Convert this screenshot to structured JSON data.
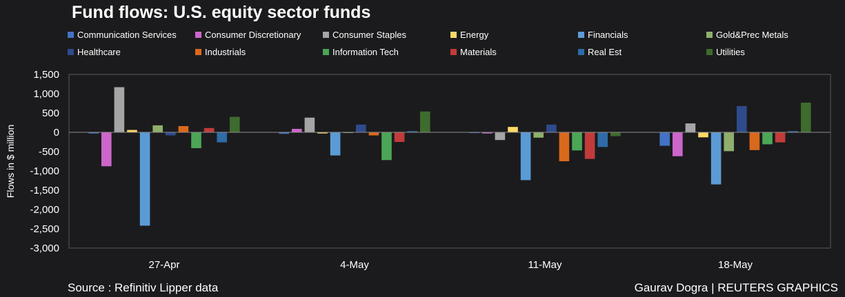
{
  "chart_data": {
    "type": "bar",
    "title": "Fund flows: U.S. equity sector funds",
    "xlabel": "",
    "ylabel": "Flows in $ million",
    "ylim": [
      -3000,
      1500
    ],
    "yticks": [
      1500,
      1000,
      500,
      0,
      -500,
      -1000,
      -1500,
      -2000,
      -2500,
      -3000
    ],
    "ytick_labels": [
      "1,500",
      "1,000",
      "500",
      "0",
      "-500",
      "-1,000",
      "-1,500",
      "-2,000",
      "-2,500",
      "-3,000"
    ],
    "categories": [
      "27-Apr",
      "4-May",
      "11-May",
      "18-May"
    ],
    "legend_position": "top",
    "series": [
      {
        "name": "Communication Services",
        "color": "#4472c4",
        "values": [
          -30,
          -40,
          -20,
          -350
        ]
      },
      {
        "name": "Consumer Discretionary",
        "color": "#cc66cc",
        "values": [
          -880,
          90,
          -30,
          -620
        ]
      },
      {
        "name": "Consumer Staples",
        "color": "#a5a5a5",
        "values": [
          1170,
          380,
          -200,
          230
        ]
      },
      {
        "name": "Energy",
        "color": "#ffd966",
        "values": [
          60,
          -30,
          140,
          -130
        ]
      },
      {
        "name": "Financials",
        "color": "#5b9bd5",
        "values": [
          -2420,
          -600,
          -1240,
          -1350
        ]
      },
      {
        "name": "Gold&Prec Metals",
        "color": "#8faf6c",
        "values": [
          180,
          -10,
          -140,
          -490
        ]
      },
      {
        "name": "Healthcare",
        "color": "#2f4b8c",
        "values": [
          -80,
          200,
          200,
          680
        ]
      },
      {
        "name": "Industrials",
        "color": "#d9691c",
        "values": [
          160,
          -80,
          -750,
          -460
        ]
      },
      {
        "name": "Information Tech",
        "color": "#4ca657",
        "values": [
          -410,
          -720,
          -470,
          -310
        ]
      },
      {
        "name": "Materials",
        "color": "#c23b3b",
        "values": [
          110,
          -250,
          -690,
          -260
        ]
      },
      {
        "name": "Real Est",
        "color": "#2e6ba8",
        "values": [
          -260,
          30,
          -380,
          30
        ]
      },
      {
        "name": "Utilities",
        "color": "#3e6b2e",
        "values": [
          400,
          540,
          -100,
          770
        ]
      }
    ]
  },
  "footer": {
    "source": "Source : Refinitiv Lipper data",
    "credit": "Gaurav Dogra | REUTERS GRAPHICS"
  }
}
